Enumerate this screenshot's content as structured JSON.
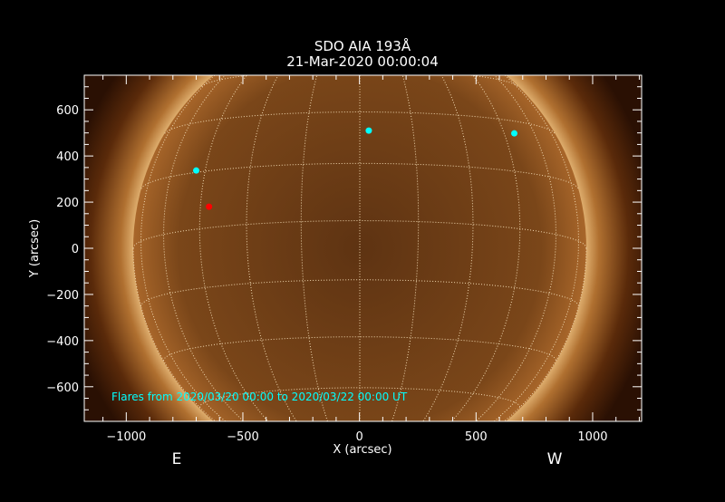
{
  "chart_data": {
    "type": "scatter",
    "title": "SDO AIA 193Å",
    "subtitle": "21-Mar-2020 00:00:04",
    "xlabel": "X (arcsec)",
    "ylabel": "Y (arcsec)",
    "xlim": [
      -1180,
      1210
    ],
    "ylim": [
      -750,
      750
    ],
    "xticks": [
      -1000,
      -500,
      0,
      500,
      1000
    ],
    "yticks": [
      -600,
      -400,
      -200,
      0,
      200,
      400,
      600
    ],
    "xtick_labels": [
      "−1000",
      "−500",
      "0",
      "500",
      "1000"
    ],
    "ytick_labels": [
      "−600",
      "−400",
      "−200",
      "0",
      "200",
      "400",
      "600"
    ],
    "background": "solar disk image (AIA 193Å) with heliographic grid",
    "grid": "heliographic 15° dotted",
    "east_label": "E",
    "west_label": "W",
    "annotation": "Flares from 2020/03/20 00:00 to 2020/03/22 00:00 UT",
    "points": [
      {
        "x": -700,
        "y": 337,
        "color": "#00ffff"
      },
      {
        "x": 40,
        "y": 510,
        "color": "#00ffff"
      },
      {
        "x": 664,
        "y": 498,
        "color": "#00ffff"
      },
      {
        "x": -645,
        "y": 180,
        "color": "#ff0000"
      }
    ],
    "colors": {
      "annotation": "#00ffff",
      "axes": "#ffffff",
      "sun": "#a8662a"
    }
  }
}
